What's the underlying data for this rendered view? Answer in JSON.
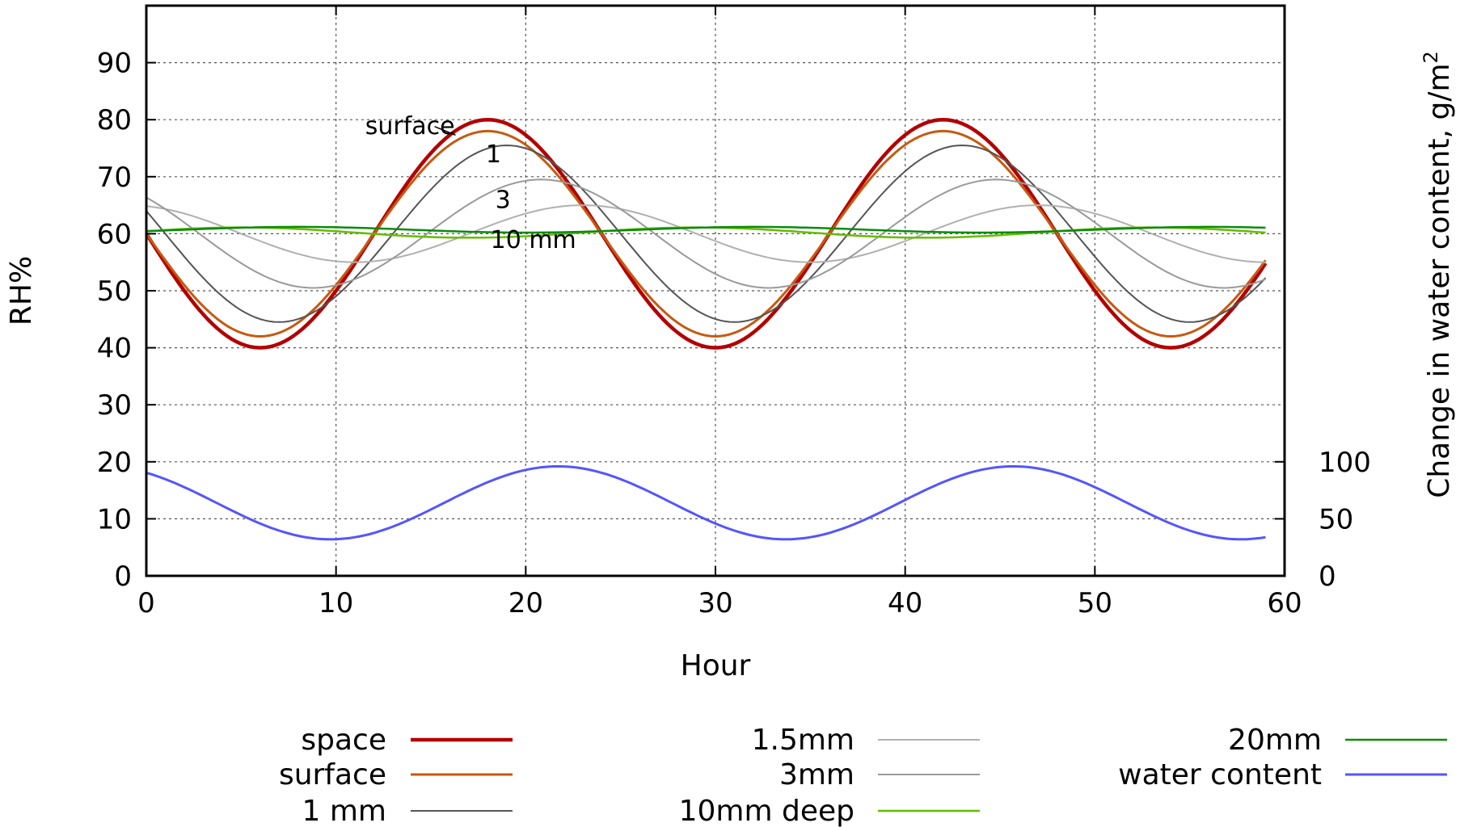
{
  "chart_data": {
    "type": "line",
    "xlabel": "Hour",
    "ylabel": "RH%",
    "y2label": "Change in water content, g/m",
    "y2label_sup": "2",
    "xlim": [
      0,
      60
    ],
    "ylim": [
      0,
      100
    ],
    "x_ticks": [
      "0",
      "10",
      "20",
      "30",
      "40",
      "50",
      "60"
    ],
    "y_ticks": [
      "0",
      "10",
      "20",
      "30",
      "40",
      "50",
      "60",
      "70",
      "80",
      "90"
    ],
    "y2_ticks": [
      {
        "label": "0",
        "at": 0
      },
      {
        "label": "50",
        "at": 10
      },
      {
        "label": "100",
        "at": 20
      }
    ],
    "grid": true,
    "legend_position": "bottom",
    "annotations": [
      {
        "text": "surface",
        "x": 13.9,
        "y": 77.5
      },
      {
        "text": "1",
        "x": 18.3,
        "y": 72.5
      },
      {
        "text": "3",
        "x": 18.8,
        "y": 64.5
      },
      {
        "text": "10 mm",
        "x": 20.4,
        "y": 57.5
      }
    ],
    "series": [
      {
        "name": "space",
        "color": "#b30000",
        "width": 4.5,
        "mean": 60,
        "amp": 20,
        "phase": 0,
        "x_end": 59
      },
      {
        "name": "surface",
        "color": "#c55a11",
        "width": 3,
        "mean": 60,
        "amp": 18,
        "phase": 0,
        "x_end": 59
      },
      {
        "name": "1 mm",
        "color": "#555555",
        "width": 2,
        "mean": 60,
        "amp": 15.5,
        "phase": 1,
        "x_end": 59
      },
      {
        "name": "1.5mm",
        "color": "#b0b0b0",
        "width": 2,
        "mean": 60,
        "amp": 5,
        "phase": 5,
        "x_end": 59
      },
      {
        "name": "3mm",
        "color": "#999999",
        "width": 2,
        "mean": 60,
        "amp": 9.5,
        "phase": 2.8,
        "x_end": 59
      },
      {
        "name": "10mm deep",
        "color": "#66bb00",
        "width": 2.5,
        "mean": 60.2,
        "amp": 0.9,
        "phase": 11,
        "x_end": 59
      },
      {
        "name": "20mm",
        "color": "#0a8c0a",
        "width": 2.5,
        "mean": 60.7,
        "amp": 0.5,
        "phase": 14,
        "x_end": 59
      },
      {
        "name": "water content",
        "color": "#5555ff",
        "width": 3,
        "mean": 12.8,
        "amp": 6.4,
        "phase": 3.7,
        "x_end": 59
      }
    ],
    "period": 24
  }
}
